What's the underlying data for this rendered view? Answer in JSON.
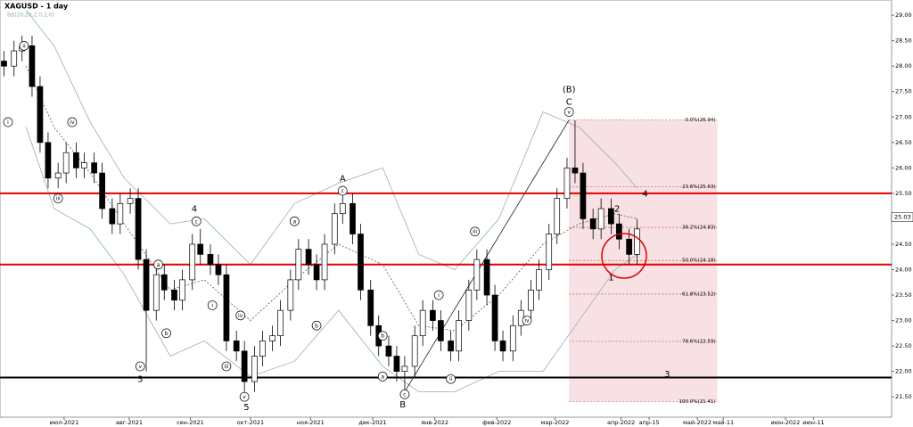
{
  "chart_data": {
    "type": "candlestick",
    "title": "XAGUSD - 1 day",
    "subtitle": "BB(20,20,2,0,2,0)",
    "xlim": [
      0,
      445
    ],
    "ylim": [
      21.1,
      29.3
    ],
    "xticks": [
      {
        "value": 32,
        "label": "июл-2021"
      },
      {
        "value": 64.5,
        "label": "авг-2021"
      },
      {
        "value": 95,
        "label": "сен-2021"
      },
      {
        "value": 125,
        "label": "окт-2021"
      },
      {
        "value": 155,
        "label": "ноя-2021"
      },
      {
        "value": 186,
        "label": "дек-2021"
      },
      {
        "value": 217,
        "label": "янв-2022"
      },
      {
        "value": 248,
        "label": "фев-2022"
      },
      {
        "value": 277,
        "label": "мар-2022"
      },
      {
        "value": 310,
        "label": "апр-2022"
      },
      {
        "value": 324,
        "label": "апр-15"
      },
      {
        "value": 348,
        "label": "май-2022"
      },
      {
        "value": 361,
        "label": "май-11"
      },
      {
        "value": 392,
        "label": "июн-2022"
      },
      {
        "value": 406,
        "label": "июн-11"
      }
    ],
    "yticks": [
      {
        "value": 21.5,
        "label": "21.50"
      },
      {
        "value": 22,
        "label": "22.00"
      },
      {
        "value": 22.5,
        "label": "22.50"
      },
      {
        "value": 23,
        "label": "23.00"
      },
      {
        "value": 23.5,
        "label": "23.50"
      },
      {
        "value": 24,
        "label": "24.00"
      },
      {
        "value": 24.5,
        "label": "24.50"
      },
      {
        "value": 25,
        "label": "25.00"
      },
      {
        "value": 25.5,
        "label": "25.50"
      },
      {
        "value": 26,
        "label": "26.00"
      },
      {
        "value": 26.5,
        "label": "26.50"
      },
      {
        "value": 27,
        "label": "27.00"
      },
      {
        "value": 27.5,
        "label": "27.50"
      },
      {
        "value": 28,
        "label": "28.00"
      },
      {
        "value": 28.5,
        "label": "28.50"
      },
      {
        "value": 29,
        "label": "29.00"
      }
    ],
    "candles": {
      "x": [
        2,
        7,
        11,
        16,
        20,
        24,
        29,
        33,
        38,
        42,
        47,
        51,
        56,
        60,
        65,
        69,
        73,
        78,
        82,
        87,
        91,
        96,
        100,
        105,
        109,
        113,
        118,
        122,
        127,
        131,
        136,
        140,
        145,
        149,
        154,
        158,
        162,
        167,
        171,
        176,
        180,
        185,
        189,
        194,
        198,
        202,
        207,
        211,
        216,
        220,
        225,
        229,
        234,
        238,
        243,
        247,
        251,
        256,
        260,
        265,
        269,
        274,
        278,
        283,
        287,
        291,
        296,
        300,
        305,
        309,
        314,
        318
      ],
      "open": [
        28.1,
        28.0,
        28.3,
        28.4,
        27.6,
        26.5,
        25.8,
        25.9,
        26.3,
        26.0,
        26.1,
        25.9,
        25.2,
        24.9,
        25.3,
        25.4,
        24.2,
        23.2,
        23.9,
        23.6,
        23.4,
        23.8,
        24.5,
        24.3,
        24.1,
        23.9,
        22.6,
        22.4,
        21.8,
        22.3,
        22.6,
        22.7,
        23.2,
        23.8,
        24.4,
        24.1,
        23.8,
        24.5,
        25.1,
        25.3,
        24.7,
        23.6,
        22.9,
        22.5,
        22.3,
        22.0,
        22.1,
        22.7,
        23.2,
        23.0,
        22.6,
        22.4,
        23.0,
        23.6,
        24.2,
        23.5,
        22.6,
        22.4,
        22.9,
        23.2,
        23.6,
        24.0,
        24.7,
        25.4,
        26.0,
        25.9,
        25.0,
        24.8,
        25.2,
        24.9,
        24.6,
        24.3
      ],
      "high": [
        28.3,
        28.5,
        28.6,
        28.6,
        27.8,
        26.7,
        26.1,
        26.5,
        26.5,
        26.3,
        26.3,
        26.1,
        25.4,
        25.5,
        25.6,
        25.6,
        24.4,
        24.1,
        24.1,
        23.8,
        24.0,
        24.7,
        24.8,
        24.5,
        24.3,
        24.1,
        22.8,
        22.6,
        22.5,
        22.8,
        22.9,
        23.4,
        24.0,
        24.6,
        24.6,
        24.3,
        24.7,
        25.3,
        25.5,
        25.5,
        24.9,
        23.8,
        23.1,
        22.7,
        22.5,
        22.3,
        22.9,
        23.4,
        23.4,
        23.2,
        22.8,
        23.2,
        23.8,
        24.4,
        24.4,
        23.7,
        22.8,
        23.1,
        23.4,
        23.8,
        24.2,
        24.9,
        25.6,
        26.2,
        26.94,
        26.1,
        25.2,
        25.4,
        25.4,
        25.1,
        24.8,
        25.0
      ],
      "low": [
        27.8,
        27.8,
        28.1,
        27.4,
        26.3,
        25.6,
        25.6,
        25.7,
        25.8,
        25.8,
        25.7,
        25.0,
        24.7,
        24.7,
        25.1,
        24.0,
        22.0,
        23.0,
        23.4,
        23.2,
        23.2,
        23.6,
        24.1,
        23.9,
        23.7,
        22.4,
        22.2,
        21.5,
        21.6,
        22.1,
        22.4,
        22.5,
        23.0,
        23.6,
        23.9,
        23.6,
        23.6,
        24.3,
        24.9,
        24.5,
        23.4,
        22.7,
        22.3,
        22.1,
        21.8,
        21.6,
        21.9,
        22.5,
        22.8,
        22.4,
        22.2,
        22.2,
        22.8,
        23.4,
        23.3,
        22.4,
        22.2,
        22.2,
        22.7,
        23.0,
        23.4,
        23.8,
        24.5,
        25.2,
        25.7,
        24.8,
        24.6,
        24.6,
        24.7,
        24.4,
        24.1,
        24.1
      ],
      "close": [
        28.0,
        28.3,
        28.4,
        27.6,
        26.5,
        25.8,
        25.9,
        26.3,
        26.0,
        26.1,
        25.9,
        25.2,
        24.9,
        25.3,
        25.4,
        24.2,
        23.2,
        23.9,
        23.6,
        23.4,
        23.8,
        24.5,
        24.3,
        24.1,
        23.9,
        22.6,
        22.4,
        21.8,
        22.3,
        22.6,
        22.7,
        23.2,
        23.8,
        24.4,
        24.1,
        23.8,
        24.5,
        25.1,
        25.3,
        24.7,
        23.6,
        22.9,
        22.5,
        22.3,
        22.0,
        22.1,
        22.7,
        23.2,
        23.0,
        22.6,
        22.4,
        23.0,
        23.6,
        24.2,
        23.5,
        22.6,
        22.4,
        22.9,
        23.2,
        23.6,
        24.0,
        24.7,
        25.4,
        26.0,
        25.9,
        25.0,
        24.8,
        25.2,
        24.9,
        24.6,
        24.3,
        24.8
      ]
    },
    "bands": {
      "color": "#8fb3ad",
      "x": [
        13,
        27,
        45,
        62,
        85,
        102,
        125,
        147,
        169,
        191,
        209,
        227,
        249,
        271,
        289,
        307,
        318
      ],
      "upper": [
        29.1,
        28.4,
        26.9,
        25.8,
        24.9,
        25.0,
        24.1,
        25.3,
        25.7,
        26.0,
        24.3,
        24.0,
        25.0,
        27.1,
        26.8,
        26.1,
        25.6
      ],
      "middle": [
        28.0,
        26.8,
        25.9,
        24.9,
        23.6,
        23.8,
        23.0,
        23.8,
        24.5,
        24.1,
        22.9,
        22.8,
        23.5,
        24.5,
        24.9,
        25.1,
        25.0
      ],
      "lower": [
        26.8,
        25.2,
        24.8,
        23.9,
        22.3,
        22.6,
        21.9,
        22.2,
        23.2,
        22.1,
        21.6,
        21.6,
        22.0,
        22.0,
        23.0,
        24.0,
        24.3
      ]
    },
    "levels": [
      {
        "value": 25.5,
        "color": "#e00000"
      },
      {
        "value": 24.1,
        "color": "#e00000"
      },
      {
        "value": 21.88,
        "color": "#000000"
      }
    ],
    "fib": {
      "x": [
        284,
        358
      ],
      "levels": [
        {
          "value": 26.94,
          "label": "0.0%(26.94)"
        },
        {
          "value": 25.63,
          "label": "23.6%(25.63)"
        },
        {
          "value": 24.83,
          "label": "38.2%(24.83)"
        },
        {
          "value": 24.18,
          "label": "50.0%(24.18)"
        },
        {
          "value": 23.52,
          "label": "61.8%(23.52)"
        },
        {
          "value": 22.59,
          "label": "78.6%(22.59)"
        },
        {
          "value": 21.41,
          "label": "100.0%(21.41)"
        }
      ]
    },
    "trendline": {
      "x": [
        202,
        284
      ],
      "y": [
        21.6,
        26.94
      ]
    },
    "current_price": {
      "value": 25.03,
      "label": "25.03"
    },
    "annotations": [
      {
        "text": "i",
        "x": 4,
        "y": 26.9,
        "circled": true
      },
      {
        "text": "ii",
        "x": 12,
        "y": 28.4,
        "circled": true
      },
      {
        "text": "iii",
        "x": 29,
        "y": 25.4,
        "circled": true
      },
      {
        "text": "iv",
        "x": 36,
        "y": 26.9,
        "circled": true
      },
      {
        "text": "v",
        "x": 70,
        "y": 22.1,
        "circled": true
      },
      {
        "text": "3",
        "x": 70,
        "y": 21.85,
        "circled": false
      },
      {
        "text": "a",
        "x": 79,
        "y": 24.1,
        "circled": true
      },
      {
        "text": "b",
        "x": 83,
        "y": 22.75,
        "circled": true
      },
      {
        "text": "4",
        "x": 97,
        "y": 25.2,
        "circled": false
      },
      {
        "text": "c",
        "x": 98,
        "y": 24.95,
        "circled": true
      },
      {
        "text": "i",
        "x": 106,
        "y": 23.3,
        "circled": true
      },
      {
        "text": "iii",
        "x": 113,
        "y": 22.1,
        "circled": true
      },
      {
        "text": "iv",
        "x": 120,
        "y": 23.1,
        "circled": true
      },
      {
        "text": "v",
        "x": 122,
        "y": 21.5,
        "circled": true
      },
      {
        "text": "5",
        "x": 123,
        "y": 21.3,
        "circled": false
      },
      {
        "text": "a",
        "x": 147,
        "y": 24.95,
        "circled": true
      },
      {
        "text": "b",
        "x": 158,
        "y": 22.9,
        "circled": true
      },
      {
        "text": "c",
        "x": 171,
        "y": 25.55,
        "circled": true
      },
      {
        "text": "A",
        "x": 171,
        "y": 25.8,
        "circled": false
      },
      {
        "text": "a",
        "x": 191,
        "y": 21.9,
        "circled": true
      },
      {
        "text": "b",
        "x": 191,
        "y": 22.7,
        "circled": true
      },
      {
        "text": "c",
        "x": 202,
        "y": 21.55,
        "circled": true
      },
      {
        "text": "B",
        "x": 201,
        "y": 21.35,
        "circled": false
      },
      {
        "text": "i",
        "x": 219,
        "y": 23.5,
        "circled": true
      },
      {
        "text": "ii",
        "x": 225,
        "y": 21.85,
        "circled": true
      },
      {
        "text": "iii",
        "x": 237,
        "y": 24.75,
        "circled": true
      },
      {
        "text": "iv",
        "x": 263,
        "y": 23.0,
        "circled": true
      },
      {
        "text": "v",
        "x": 284,
        "y": 27.1,
        "circled": true
      },
      {
        "text": "C",
        "x": 284,
        "y": 27.3,
        "circled": false
      },
      {
        "text": "(B)",
        "x": 284,
        "y": 27.55,
        "circled": false
      },
      {
        "text": "2",
        "x": 308,
        "y": 25.2,
        "circled": false
      },
      {
        "text": "1",
        "x": 305,
        "y": 23.85,
        "circled": false
      },
      {
        "text": "4",
        "x": 322,
        "y": 25.5,
        "circled": false
      },
      {
        "text": "3",
        "x": 333,
        "y": 21.95,
        "circled": false
      }
    ]
  }
}
